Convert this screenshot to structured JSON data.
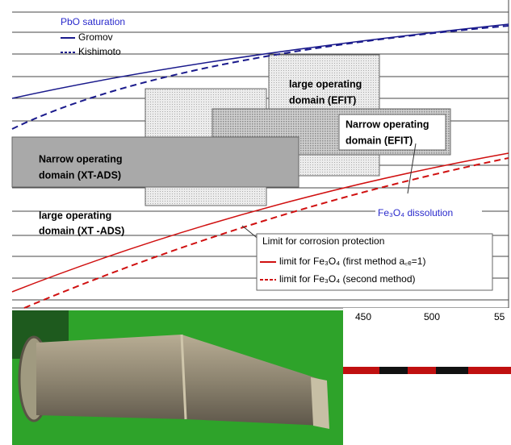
{
  "chart": {
    "series_title_top": "PbO saturation",
    "legend_top": [
      "Gromov",
      "Kishimoto"
    ],
    "large_efit": [
      "large operating",
      "domain (EFIT)"
    ],
    "narrow_efit": [
      "Narrow operating",
      "domain (EFIT)"
    ],
    "narrow_xtads": [
      "Narrow operating",
      "domain (XT-ADS)"
    ],
    "large_xtads": [
      "large operating",
      "domain (XT -ADS)"
    ],
    "series_title_bottom": "Fe₃O₄ dissolution",
    "legend_bottom": {
      "title": "Limit for corrosion protection",
      "entries": [
        "limit for Fe₃O₄ (first method a꜀ₑ=1)",
        "limit for Fe₃O₄ (second method)"
      ]
    },
    "x_tick_labels": [
      "450",
      "500",
      "55"
    ]
  }
}
